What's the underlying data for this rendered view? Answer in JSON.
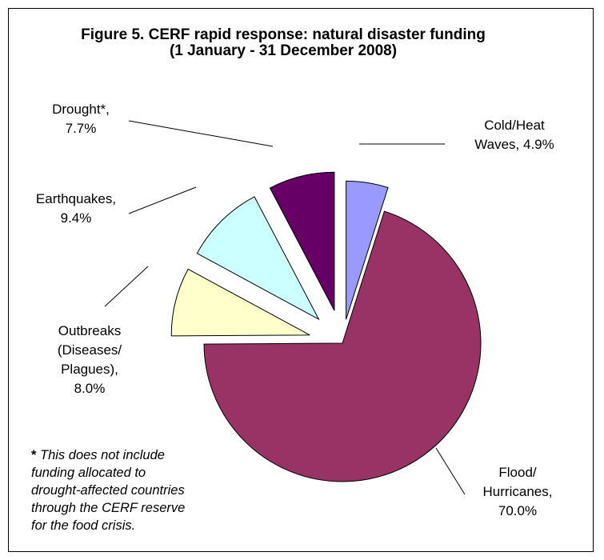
{
  "chart_data": {
    "type": "pie",
    "title": "Figure 5. CERF rapid response: natural disaster funding",
    "subtitle": "(1 January - 31 December 2008)",
    "slices": [
      {
        "label": [
          "Cold/Heat",
          "Waves, 4.9%"
        ],
        "value": 4.9,
        "color": "#9999ff"
      },
      {
        "label": [
          "Flood/",
          "Hurricanes,",
          "70.0%"
        ],
        "value": 70.0,
        "color": "#993366"
      },
      {
        "label": [
          "Outbreaks",
          "(Diseases/",
          "Plagues),",
          "8.0%"
        ],
        "value": 8.0,
        "color": "#ffffcc"
      },
      {
        "label": [
          "Earthquakes,",
          "9.4%"
        ],
        "value": 9.4,
        "color": "#ccffff"
      },
      {
        "label": [
          "Drought*,",
          "7.7%"
        ],
        "value": 7.7,
        "color": "#660066"
      }
    ],
    "footnote": {
      "marker": "*",
      "lines": [
        " This does not include",
        "funding allocated to",
        "drought-affected countries",
        "through the CERF reserve",
        "for the food crisis."
      ]
    }
  }
}
